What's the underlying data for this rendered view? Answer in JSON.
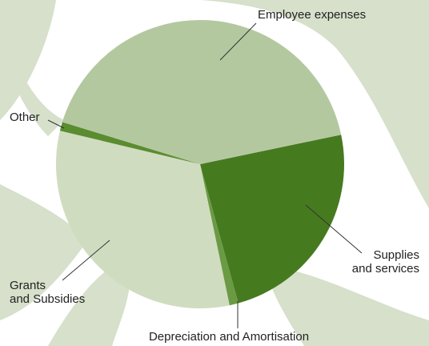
{
  "chart_data": {
    "type": "pie",
    "categories": [
      "Supplies\nand services",
      "Depreciation and Amortisation",
      "Grants\nand Subsidies",
      "Other",
      "Employee expenses"
    ],
    "values": [
      24,
      1,
      32,
      1,
      42
    ],
    "colors": [
      "#467a1f",
      "#6b9a45",
      "#d0dcc0",
      "#5a8c30",
      "#b4c8a0"
    ]
  }
}
